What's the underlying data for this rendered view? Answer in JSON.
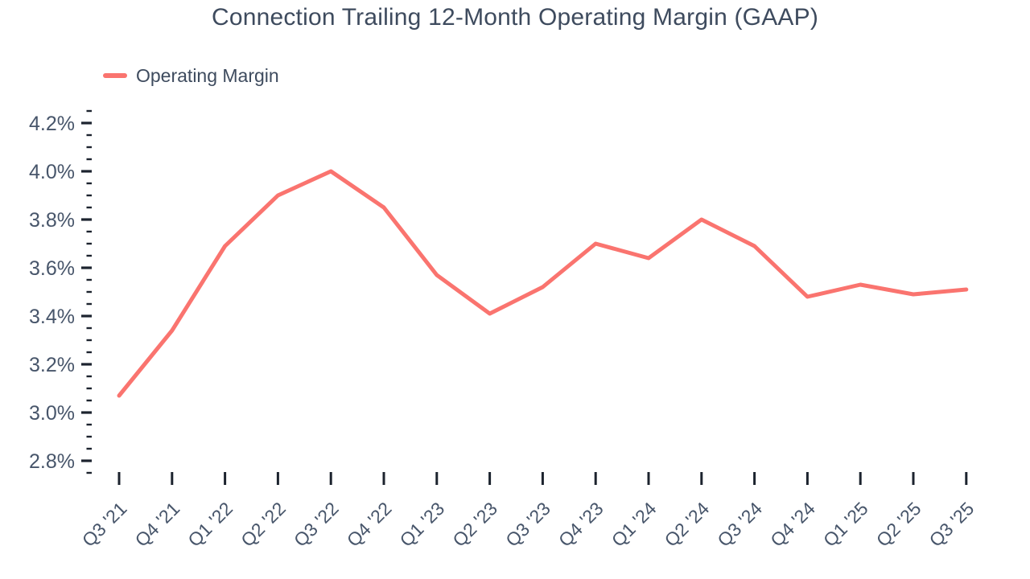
{
  "chart": {
    "title": "Connection Trailing 12-Month Operating Margin (GAAP)",
    "legend_label": "Operating Margin"
  },
  "chart_data": {
    "type": "line",
    "title": "Connection Trailing 12-Month Operating Margin (GAAP)",
    "categories": [
      "Q3 '21",
      "Q4 '21",
      "Q1 '22",
      "Q2 '22",
      "Q3 '22",
      "Q4 '22",
      "Q1 '23",
      "Q2 '23",
      "Q3 '23",
      "Q4 '23",
      "Q1 '24",
      "Q2 '24",
      "Q3 '24",
      "Q4 '24",
      "Q1 '25",
      "Q2 '25",
      "Q3 '25"
    ],
    "series": [
      {
        "name": "Operating Margin",
        "unit": "%",
        "values": [
          3.07,
          3.34,
          3.69,
          3.9,
          4.0,
          3.85,
          3.57,
          3.41,
          3.52,
          3.7,
          3.64,
          3.8,
          3.69,
          3.48,
          3.53,
          3.49,
          3.51
        ]
      }
    ],
    "xlabel": "",
    "ylabel": "",
    "y_axis": {
      "label_min": 2.8,
      "label_max": 4.2,
      "major_step": 0.2,
      "minor_step": 0.05,
      "tick_min": 2.75,
      "tick_max": 4.25,
      "tick_format": "0.0%"
    },
    "x_axis": {
      "label_rotation_deg": -45
    },
    "grid": false,
    "legend_position": "top-left",
    "colors": {
      "line": "#FA746F",
      "title_text": "#3E4B5E",
      "axis_text": "#47556A",
      "tick": "#1C232E",
      "background": "#FFFFFF"
    }
  }
}
